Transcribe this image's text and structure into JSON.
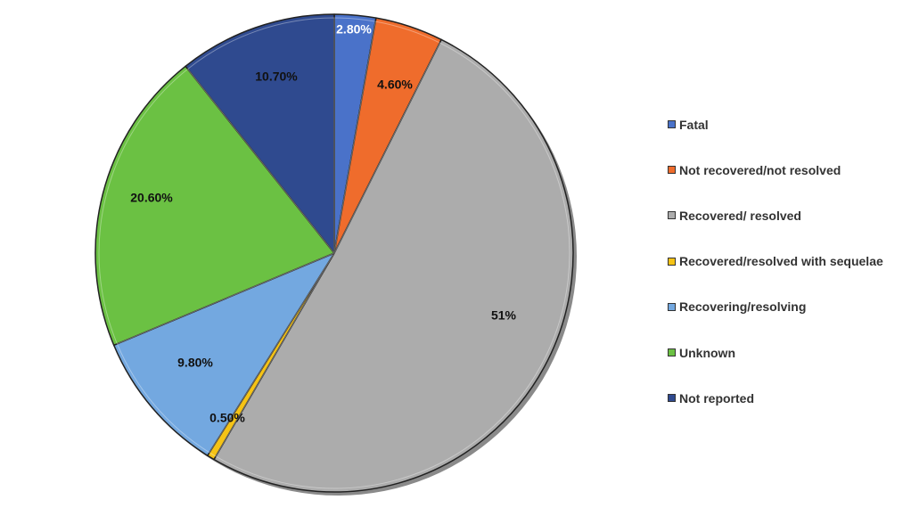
{
  "chart_data": {
    "type": "pie",
    "title": "",
    "slices": [
      {
        "label": "Fatal",
        "value": 2.8,
        "display": "2.80%",
        "color": "#4a72c9"
      },
      {
        "label": "Not recovered/not resolved",
        "value": 4.6,
        "display": "4.60%",
        "color": "#ef6c2c"
      },
      {
        "label": "Recovered/ resolved",
        "value": 51,
        "display": "51%",
        "color": "#acacac"
      },
      {
        "label": "Recovered/resolved with sequelae",
        "value": 0.5,
        "display": "0.50%",
        "color": "#f5c316"
      },
      {
        "label": "Recovering/resolving",
        "value": 9.8,
        "display": "9.80%",
        "color": "#73a8e0"
      },
      {
        "label": "Unknown",
        "value": 20.6,
        "display": "20.60%",
        "color": "#6bc143"
      },
      {
        "label": "Not reported",
        "value": 10.7,
        "display": "10.70%",
        "color": "#2f4a8f"
      }
    ],
    "legend_position": "right"
  }
}
